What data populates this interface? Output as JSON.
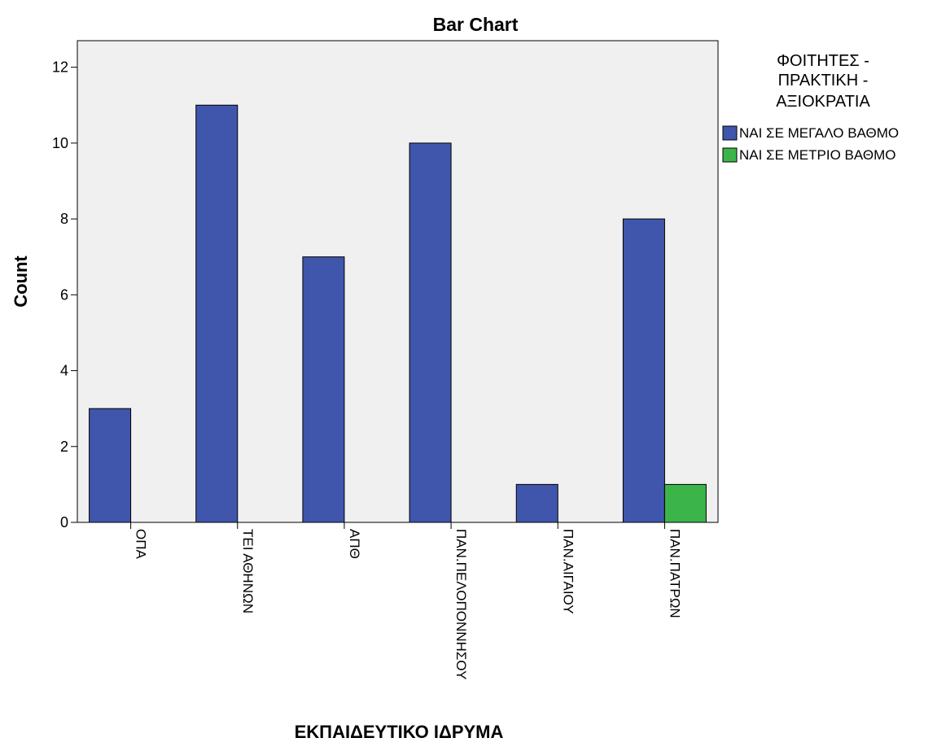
{
  "chart_data": {
    "type": "bar",
    "title": "Bar Chart",
    "xlabel": "ΕΚΠΑΙΔΕΥΤΙΚΟ ΙΔΡΥΜΑ",
    "ylabel": "Count",
    "categories": [
      "ΟΠΑ",
      "ΤΕΙ ΑΘΗΝΩΝ",
      "ΑΠΘ",
      "ΠΑΝ.ΠΕΛΟΠΟΝΝΗΣΟΥ",
      "ΠΑΝ.ΑΙΓΑΙΟΥ",
      "ΠΑΝ.ΠΑΤΡΩΝ"
    ],
    "series": [
      {
        "name": "ΝΑΙ ΣΕ ΜΕΓΑΛΟ ΒΑΘΜΟ",
        "color": "#3F56AC",
        "values": [
          3,
          11,
          7,
          10,
          1,
          8
        ]
      },
      {
        "name": "ΝΑΙ ΣΕ ΜΕΤΡΙΟ ΒΑΘΜΟ",
        "color": "#3BB54A",
        "values": [
          0,
          0,
          0,
          0,
          0,
          1
        ]
      }
    ],
    "ylim": [
      0,
      12.7
    ],
    "yticks": [
      0,
      2,
      4,
      6,
      8,
      10,
      12
    ],
    "grid": false,
    "legend": {
      "title_lines": [
        "ΦΟΙΤΗΤΕΣ -",
        "ΠΡΑΚΤΙΚΗ -",
        "ΑΞΙΟΚΡΑΤΙΑ"
      ],
      "position": "right"
    },
    "plot_background": "#F0F0F0"
  }
}
